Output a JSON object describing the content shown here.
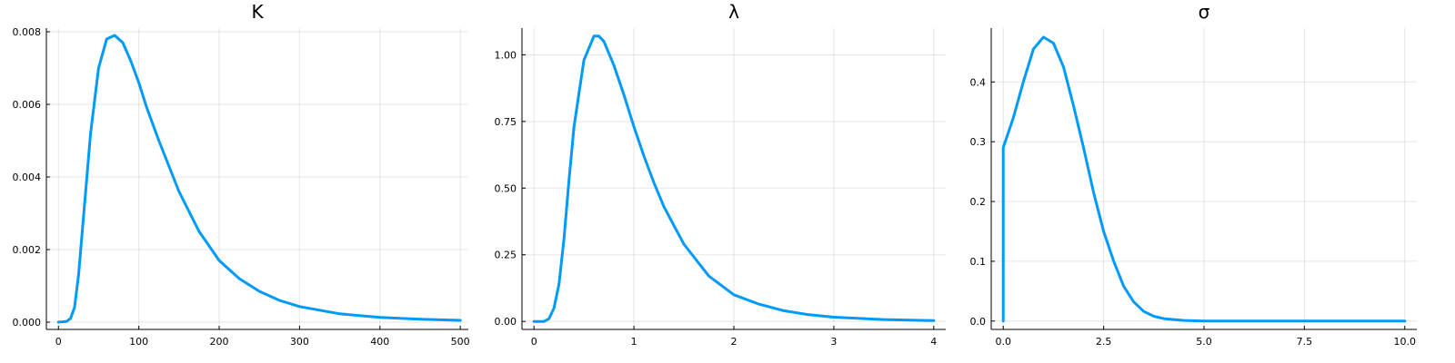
{
  "chart_data": [
    {
      "type": "line",
      "title": "K",
      "xlim": [
        -15,
        510
      ],
      "ylim": [
        -0.0002,
        0.0081
      ],
      "xticks": [
        0,
        100,
        200,
        300,
        400,
        500
      ],
      "xtick_labels": [
        "0",
        "100",
        "200",
        "300",
        "400",
        "500"
      ],
      "yticks": [
        0.0,
        0.002,
        0.004,
        0.006,
        0.008
      ],
      "ytick_labels": [
        "0.000",
        "0.002",
        "0.004",
        "0.006",
        "0.008"
      ],
      "grid": true,
      "color": "#009af9",
      "series": [
        {
          "x": [
            0,
            10,
            15,
            20,
            25,
            30,
            40,
            50,
            60,
            70,
            80,
            90,
            100,
            110,
            125,
            150,
            175,
            200,
            225,
            250,
            275,
            300,
            350,
            400,
            450,
            500
          ],
          "y": [
            0.0,
            2e-05,
            0.0001,
            0.0004,
            0.0013,
            0.0026,
            0.0052,
            0.007,
            0.0078,
            0.0079,
            0.0077,
            0.0072,
            0.0066,
            0.0059,
            0.005,
            0.0036,
            0.0025,
            0.0017,
            0.0012,
            0.00085,
            0.0006,
            0.00043,
            0.00023,
            0.00013,
            8e-05,
            5e-05
          ]
        }
      ]
    },
    {
      "type": "line",
      "title": "λ",
      "xlim": [
        -0.12,
        4.12
      ],
      "ylim": [
        -0.03,
        1.1
      ],
      "xticks": [
        0,
        1,
        2,
        3,
        4
      ],
      "xtick_labels": [
        "0",
        "1",
        "2",
        "3",
        "4"
      ],
      "yticks": [
        0.0,
        0.25,
        0.5,
        0.75,
        1.0
      ],
      "ytick_labels": [
        "0.00",
        "0.25",
        "0.50",
        "0.75",
        "1.00"
      ],
      "grid": true,
      "color": "#009af9",
      "series": [
        {
          "x": [
            0,
            0.1,
            0.15,
            0.2,
            0.25,
            0.3,
            0.35,
            0.4,
            0.5,
            0.6,
            0.65,
            0.7,
            0.8,
            0.9,
            1.0,
            1.1,
            1.2,
            1.3,
            1.5,
            1.75,
            2.0,
            2.25,
            2.5,
            2.75,
            3.0,
            3.5,
            4.0
          ],
          "y": [
            0.0,
            0.0,
            0.01,
            0.05,
            0.14,
            0.31,
            0.53,
            0.73,
            0.98,
            1.07,
            1.07,
            1.05,
            0.96,
            0.85,
            0.73,
            0.62,
            0.52,
            0.43,
            0.29,
            0.17,
            0.1,
            0.065,
            0.04,
            0.025,
            0.016,
            0.007,
            0.003
          ]
        }
      ]
    },
    {
      "type": "line",
      "title": "σ",
      "xlim": [
        -0.3,
        10.3
      ],
      "ylim": [
        -0.014,
        0.49
      ],
      "xticks": [
        0,
        2.5,
        5,
        7.5,
        10
      ],
      "xtick_labels": [
        "0.0",
        "2.5",
        "5.0",
        "7.5",
        "10.0"
      ],
      "yticks": [
        0.0,
        0.1,
        0.2,
        0.3,
        0.4
      ],
      "ytick_labels": [
        "0.0",
        "0.1",
        "0.2",
        "0.3",
        "0.4"
      ],
      "grid": true,
      "color": "#009af9",
      "series": [
        {
          "x": [
            0,
            0,
            0.25,
            0.5,
            0.75,
            1.0,
            1.25,
            1.5,
            1.75,
            2.0,
            2.25,
            2.5,
            2.75,
            3.0,
            3.25,
            3.5,
            3.75,
            4.0,
            4.5,
            5.0,
            6.0,
            7.0,
            8.0,
            9.0,
            10.0
          ],
          "y": [
            0.0,
            0.29,
            0.34,
            0.4,
            0.455,
            0.475,
            0.465,
            0.425,
            0.36,
            0.29,
            0.215,
            0.15,
            0.1,
            0.058,
            0.032,
            0.016,
            0.008,
            0.004,
            0.001,
            0.0,
            0.0,
            0.0,
            0.0,
            0.0,
            0.0
          ]
        }
      ]
    }
  ]
}
